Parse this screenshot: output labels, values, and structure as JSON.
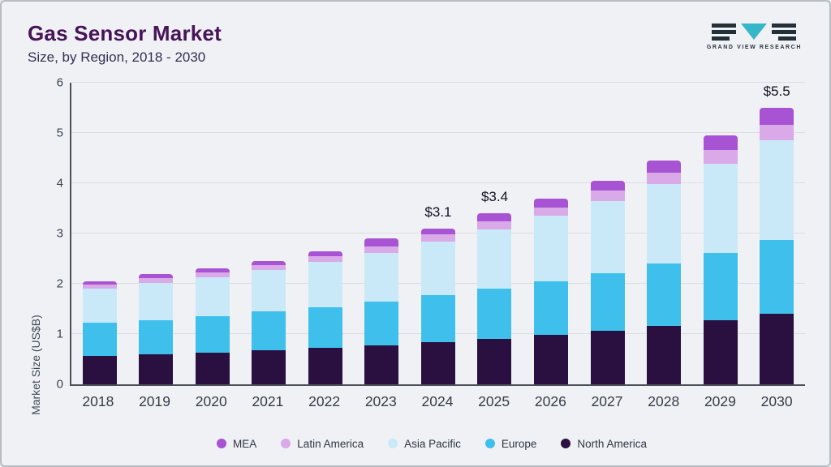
{
  "header": {
    "title": "Gas Sensor Market",
    "subtitle": "Size, by Region, 2018 - 2030",
    "logo_text": "GRAND VIEW RESEARCH"
  },
  "chart_data": {
    "type": "bar",
    "stacked": true,
    "title": "Gas Sensor Market Size, by Region, 2018 - 2030",
    "xlabel": "",
    "ylabel": "Market Size (US$B)",
    "ylim": [
      0,
      6
    ],
    "ytick_step": 1,
    "grid": true,
    "legend_position": "bottom",
    "categories": [
      "2018",
      "2019",
      "2020",
      "2021",
      "2022",
      "2023",
      "2024",
      "2025",
      "2026",
      "2027",
      "2028",
      "2029",
      "2030"
    ],
    "series": [
      {
        "name": "North America",
        "color": "#2a1040",
        "values": [
          0.57,
          0.6,
          0.63,
          0.67,
          0.72,
          0.77,
          0.84,
          0.9,
          0.98,
          1.06,
          1.16,
          1.27,
          1.4
        ]
      },
      {
        "name": "Europe",
        "color": "#3fc0ec",
        "values": [
          0.65,
          0.68,
          0.72,
          0.78,
          0.82,
          0.87,
          0.93,
          1.0,
          1.07,
          1.15,
          1.24,
          1.35,
          1.47
        ]
      },
      {
        "name": "Asia Pacific",
        "color": "#c9e9f9",
        "values": [
          0.68,
          0.73,
          0.78,
          0.83,
          0.9,
          0.98,
          1.07,
          1.18,
          1.3,
          1.43,
          1.58,
          1.76,
          1.98
        ]
      },
      {
        "name": "Latin America",
        "color": "#d9a9e8",
        "values": [
          0.08,
          0.1,
          0.09,
          0.09,
          0.11,
          0.13,
          0.14,
          0.16,
          0.16,
          0.21,
          0.23,
          0.28,
          0.32
        ]
      },
      {
        "name": "MEA",
        "color": "#a853d4",
        "values": [
          0.07,
          0.09,
          0.08,
          0.08,
          0.1,
          0.15,
          0.12,
          0.16,
          0.19,
          0.2,
          0.24,
          0.29,
          0.33
        ]
      }
    ],
    "legend_order": [
      "MEA",
      "Latin America",
      "Asia Pacific",
      "Europe",
      "North America"
    ],
    "annotations": {
      "2024": "$3.1",
      "2025": "$3.4",
      "2030": "$5.5"
    },
    "totals": [
      2.05,
      2.2,
      2.3,
      2.45,
      2.65,
      2.9,
      3.1,
      3.4,
      3.7,
      4.05,
      4.45,
      4.95,
      5.5
    ]
  },
  "colors": {
    "title": "#471359",
    "background": "#f0f1f4",
    "logo_teal": "#35b6c9",
    "logo_dark": "#243038"
  }
}
